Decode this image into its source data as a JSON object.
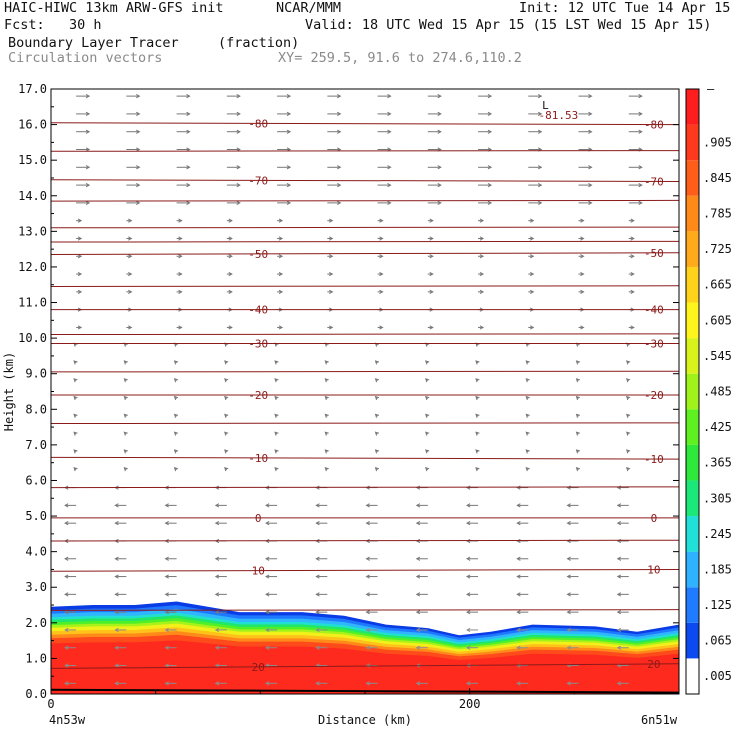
{
  "header": {
    "model": "HAIC-HIWC 13km ARW-GFS init",
    "org": "NCAR/MMM",
    "init": "Init: 12 UTC Tue 14 Apr 15",
    "fcst": "Fcst:   30 h",
    "valid": "Valid: 18 UTC Wed 15 Apr 15 (15 LST Wed 15 Apr 15)",
    "field": "Boundary Layer Tracer",
    "units": "(fraction)",
    "vectors": "Circulation vectors",
    "xy": "XY= 259.5, 91.6 to 274.6,110.2"
  },
  "chart_data": {
    "type": "area",
    "title": "Boundary Layer Tracer (fraction) cross-section",
    "xlabel": "Distance (km)",
    "ylabel": "Height (km)",
    "xlim": [
      0,
      300
    ],
    "ylim": [
      0.0,
      17.0
    ],
    "x_ticks": [
      "0",
      "200"
    ],
    "x_end_labels": [
      "4n53w",
      "6n51w"
    ],
    "y_ticks": [
      "0.0",
      "1.0",
      "2.0",
      "3.0",
      "4.0",
      "5.0",
      "6.0",
      "7.0",
      "8.0",
      "9.0",
      "10.0",
      "11.0",
      "12.0",
      "13.0",
      "14.0",
      "15.0",
      "16.0",
      "17.0"
    ],
    "colorbar_labels": [
      ".005",
      ".065",
      ".125",
      ".185",
      ".245",
      ".305",
      ".365",
      ".425",
      ".485",
      ".545",
      ".605",
      ".665",
      ".725",
      ".785",
      ".845",
      ".905"
    ],
    "colorbar_colors": [
      "#ffffff",
      "#0a4af0",
      "#1f7bff",
      "#2fb2ff",
      "#20e0d8",
      "#1ce87a",
      "#2ee83c",
      "#5ef020",
      "#9ff21a",
      "#d8f21c",
      "#fff51c",
      "#ffd21c",
      "#ffaa1a",
      "#ff8a1a",
      "#ff5e1a",
      "#ff3a1c",
      "#ff1e1e"
    ],
    "bl_top_km": [
      [
        0,
        2.45
      ],
      [
        20,
        2.5
      ],
      [
        40,
        2.5
      ],
      [
        50,
        2.55
      ],
      [
        60,
        2.6
      ],
      [
        70,
        2.5
      ],
      [
        90,
        2.3
      ],
      [
        120,
        2.3
      ],
      [
        140,
        2.2
      ],
      [
        160,
        1.95
      ],
      [
        180,
        1.85
      ],
      [
        195,
        1.65
      ],
      [
        210,
        1.75
      ],
      [
        230,
        1.95
      ],
      [
        260,
        1.9
      ],
      [
        280,
        1.75
      ],
      [
        300,
        1.95
      ]
    ],
    "temperature_contours": [
      {
        "label": "20",
        "y": [
          0.72,
          0.85
        ]
      },
      {
        "label": "10",
        "y": [
          3.45,
          3.5
        ]
      },
      {
        "label": "0",
        "y": [
          4.95,
          4.95
        ]
      },
      {
        "label": "-10",
        "y": [
          6.65,
          6.6
        ]
      },
      {
        "label": "-20",
        "y": [
          8.4,
          8.4
        ]
      },
      {
        "label": "-30",
        "y": [
          9.85,
          9.85
        ]
      },
      {
        "label": "-40",
        "y": [
          10.8,
          10.8
        ]
      },
      {
        "label": "-50",
        "y": [
          12.35,
          12.4
        ]
      },
      {
        "label": "-70",
        "y": [
          14.45,
          14.4
        ]
      },
      {
        "label": "-80",
        "y": [
          16.05,
          16.0
        ]
      }
    ],
    "min_annotation": {
      "label": "L",
      "value": "-81.53",
      "x": 240,
      "y": 16.55
    }
  }
}
